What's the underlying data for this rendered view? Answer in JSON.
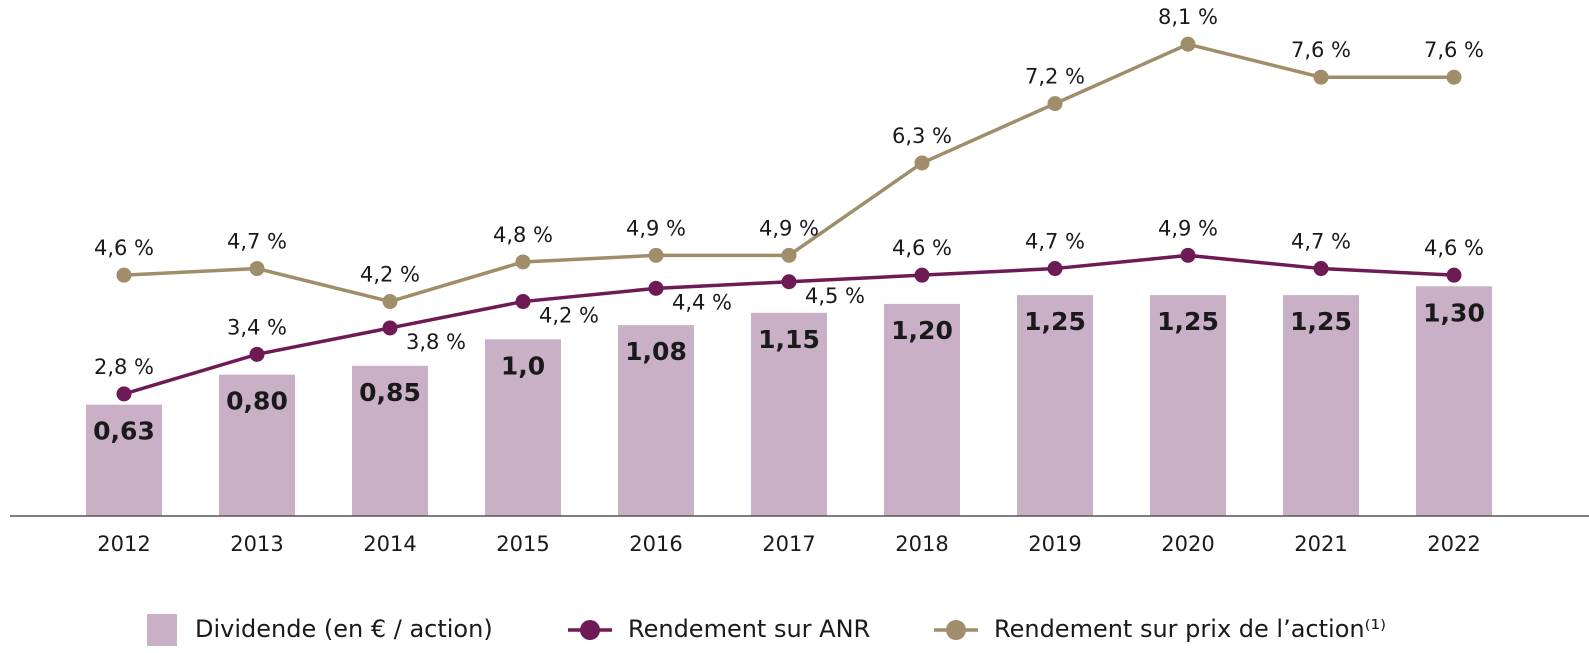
{
  "chart_data": {
    "type": "bar",
    "categories": [
      "2012",
      "2013",
      "2014",
      "2015",
      "2016",
      "2017",
      "2018",
      "2019",
      "2020",
      "2021",
      "2022"
    ],
    "ylim": [
      0,
      2.92
    ],
    "y2lim": [
      0.95,
      8.77
    ],
    "series": [
      {
        "name": "Dividende (en € / action)",
        "type": "bar",
        "color": "#c9b0c6",
        "values": [
          0.63,
          0.8,
          0.85,
          1.0,
          1.08,
          1.15,
          1.2,
          1.25,
          1.25,
          1.25,
          1.3
        ],
        "value_labels": [
          "0,63",
          "0,80",
          "0,85",
          "1,0",
          "1,08",
          "1,15",
          "1,20",
          "1,25",
          "1,25",
          "1,25",
          "1,30"
        ]
      },
      {
        "name": "Rendement sur ANR",
        "type": "line",
        "axis": "y2",
        "color": "#6e1a55",
        "values": [
          2.8,
          3.4,
          3.8,
          4.2,
          4.4,
          4.5,
          4.6,
          4.7,
          4.9,
          4.7,
          4.6
        ],
        "value_labels": [
          "2,8 %",
          "3,4 %",
          "3,8 %",
          "4,2 %",
          "4,4 %",
          "4,5 %",
          "4,6 %",
          "4,7 %",
          "4,9 %",
          "4,7 %",
          "4,6 %"
        ]
      },
      {
        "name": "Rendement sur prix de l’action⁽¹⁾",
        "type": "line",
        "axis": "y2",
        "color": "#a08e6a",
        "values": [
          4.6,
          4.7,
          4.2,
          4.8,
          4.9,
          4.9,
          6.3,
          7.2,
          8.1,
          7.6,
          7.6
        ],
        "value_labels": [
          "4,6 %",
          "4,7 %",
          "4,2 %",
          "4,8 %",
          "4,9 %",
          "4,9 %",
          "6,3 %",
          "7,2 %",
          "8,1 %",
          "7,6 %",
          "7,6 %"
        ]
      }
    ]
  }
}
